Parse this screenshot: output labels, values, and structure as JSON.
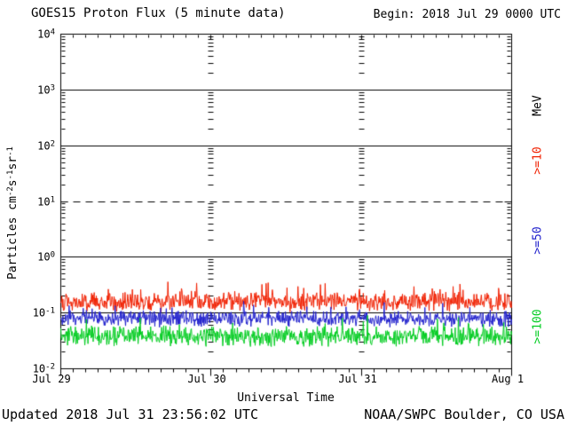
{
  "header": {
    "title": "GOES15 Proton Flux (5 minute data)",
    "begin": "Begin: 2018 Jul 29 0000 UTC"
  },
  "footer": {
    "updated": "Updated 2018 Jul 31 23:56:02 UTC",
    "credit": "NOAA/SWPC Boulder, CO USA"
  },
  "chart_data": {
    "type": "line",
    "title": "GOES15 Proton Flux (5 minute data)",
    "x_axis": {
      "label": "Universal Time",
      "tick_labels": [
        "Jul 29",
        "Jul 30",
        "Jul 31",
        "Aug 1"
      ],
      "days": 3,
      "minor_ticks_per_day": 12,
      "samples_per_day": 288
    },
    "y_axis": {
      "scale": "log",
      "exponent_top": 4,
      "exponent_bottom": -2,
      "tick_exponents": [
        "4",
        "3",
        "2",
        "1",
        "0",
        "-1",
        "-2"
      ],
      "minor_multiples": [
        2,
        3,
        4,
        5,
        6,
        7,
        8,
        9
      ],
      "label_parts": [
        {
          "t": "Particles  cm"
        },
        {
          "t": "-2",
          "sup": true
        },
        {
          "t": "s"
        },
        {
          "t": "-1",
          "sup": true
        },
        {
          "t": "sr"
        },
        {
          "t": "-1",
          "sup": true
        }
      ]
    },
    "grid": {
      "solid_line_exponents": [
        3,
        2,
        0,
        -1
      ],
      "dashed_line_exponents": [
        1
      ],
      "day_boundary_tick_columns": true
    },
    "right_axis_unit": "MeV",
    "axis_color": "#000000",
    "series": [
      {
        "name": ">=10",
        "energy_mev": 10,
        "color": "#f02000",
        "typical_flux": 0.17,
        "flux_range": [
          0.1,
          0.45
        ],
        "n_points": 864,
        "seed": 101,
        "center_log10": -0.8,
        "sigma_log10": 0.19,
        "spike_prob": 0.1,
        "spike_max_log10": 0.25
      },
      {
        "name": ">=50",
        "energy_mev": 50,
        "color": "#2020cc",
        "typical_flux": 0.08,
        "flux_range": [
          0.05,
          0.2
        ],
        "n_points": 864,
        "seed": 202,
        "center_log10": -1.1,
        "sigma_log10": 0.16,
        "spike_prob": 0.08,
        "spike_max_log10": 0.25
      },
      {
        "name": ">=100",
        "energy_mev": 100,
        "color": "#00cc20",
        "typical_flux": 0.04,
        "flux_range": [
          0.022,
          0.1
        ],
        "n_points": 864,
        "seed": 303,
        "center_log10": -1.42,
        "sigma_log10": 0.2,
        "spike_prob": 0.08,
        "spike_max_log10": 0.22
      }
    ]
  }
}
